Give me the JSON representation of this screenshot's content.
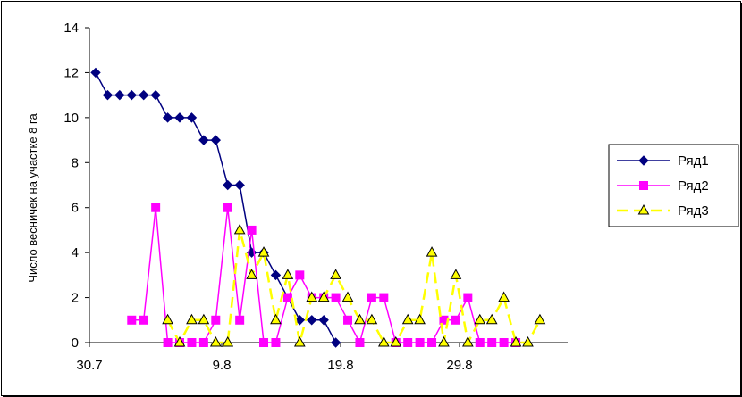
{
  "chart_data": {
    "type": "line",
    "title": "",
    "xlabel": "",
    "ylabel": "Число весничек на участке 8 га",
    "x_ticks": [
      "30.7",
      "9.8",
      "19.8",
      "29.8"
    ],
    "ylim": [
      0,
      14
    ],
    "y_ticks": [
      0,
      2,
      4,
      6,
      8,
      10,
      12,
      14
    ],
    "grid": false,
    "legend_position": "right",
    "series": [
      {
        "name": "Ряд1",
        "color": "#000080",
        "marker": "diamond",
        "style": "solid",
        "points": [
          [
            0,
            12
          ],
          [
            1,
            11
          ],
          [
            2,
            11
          ],
          [
            3,
            11
          ],
          [
            4,
            11
          ],
          [
            5,
            11
          ],
          [
            6,
            10
          ],
          [
            7,
            10
          ],
          [
            8,
            10
          ],
          [
            9,
            9
          ],
          [
            10,
            9
          ],
          [
            11,
            7
          ],
          [
            12,
            7
          ],
          [
            13,
            4
          ],
          [
            14,
            4
          ],
          [
            15,
            3
          ],
          [
            17,
            1
          ],
          [
            18,
            1
          ],
          [
            19,
            1
          ],
          [
            20,
            0
          ]
        ]
      },
      {
        "name": "Ряд2",
        "color": "#FF00FF",
        "marker": "square",
        "style": "solid",
        "points": [
          [
            3,
            1
          ],
          [
            4,
            1
          ],
          [
            5,
            6
          ],
          [
            6,
            0
          ],
          [
            7,
            0
          ],
          [
            8,
            0
          ],
          [
            9,
            0
          ],
          [
            10,
            1
          ],
          [
            11,
            6
          ],
          [
            12,
            1
          ],
          [
            13,
            5
          ],
          [
            14,
            0
          ],
          [
            15,
            0
          ],
          [
            16,
            2
          ],
          [
            17,
            3
          ],
          [
            18,
            2
          ],
          [
            19,
            2
          ],
          [
            20,
            2
          ],
          [
            21,
            1
          ],
          [
            22,
            0
          ],
          [
            23,
            2
          ],
          [
            24,
            2
          ],
          [
            25,
            0
          ],
          [
            26,
            0
          ],
          [
            27,
            0
          ],
          [
            28,
            0
          ],
          [
            29,
            1
          ],
          [
            30,
            1
          ],
          [
            31,
            2
          ],
          [
            32,
            0
          ],
          [
            33,
            0
          ],
          [
            34,
            0
          ],
          [
            35,
            0
          ]
        ]
      },
      {
        "name": "Ряд3",
        "color": "#FFFF00",
        "marker": "triangle",
        "style": "dashed",
        "points": [
          [
            6,
            1
          ],
          [
            7,
            0
          ],
          [
            8,
            1
          ],
          [
            9,
            1
          ],
          [
            10,
            0
          ],
          [
            11,
            0
          ],
          [
            12,
            5
          ],
          [
            13,
            3
          ],
          [
            14,
            4
          ],
          [
            15,
            1
          ],
          [
            16,
            3
          ],
          [
            17,
            0
          ],
          [
            18,
            2
          ],
          [
            19,
            2
          ],
          [
            20,
            3
          ],
          [
            21,
            2
          ],
          [
            22,
            1
          ],
          [
            23,
            1
          ],
          [
            24,
            0
          ],
          [
            25,
            0
          ],
          [
            26,
            1
          ],
          [
            27,
            1
          ],
          [
            28,
            4
          ],
          [
            29,
            0
          ],
          [
            30,
            3
          ],
          [
            31,
            0
          ],
          [
            32,
            1
          ],
          [
            33,
            1
          ],
          [
            34,
            2
          ],
          [
            35,
            0
          ],
          [
            36,
            0
          ],
          [
            37,
            1
          ]
        ]
      }
    ]
  }
}
